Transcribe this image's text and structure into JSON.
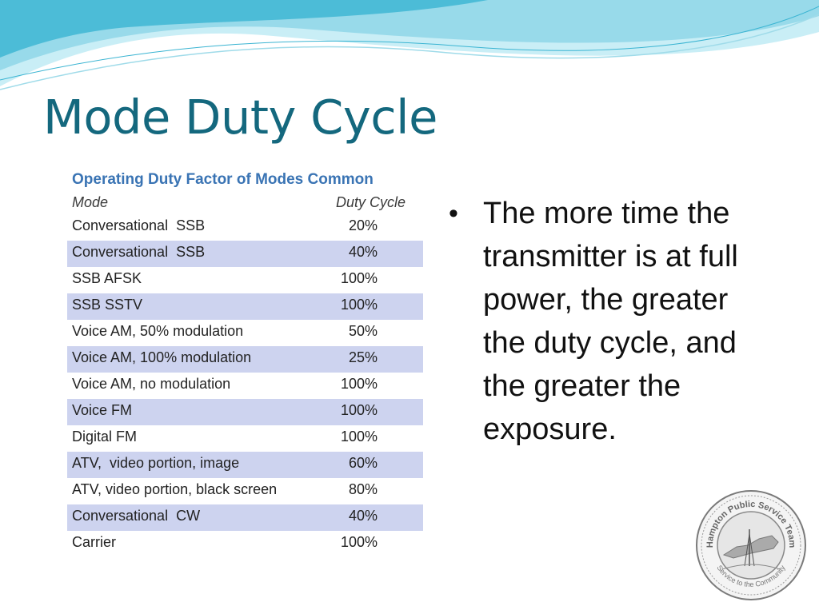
{
  "slide": {
    "title": "Mode Duty Cycle"
  },
  "table": {
    "caption": "Operating Duty Factor of Modes Common",
    "header_mode": "Mode",
    "header_duty": "Duty Cycle",
    "rows": [
      {
        "mode": "Conversational  SSB",
        "duty": "20%",
        "shaded": false
      },
      {
        "mode": "Conversational  SSB",
        "duty": "40%",
        "shaded": true
      },
      {
        "mode": "SSB AFSK",
        "duty": "100%",
        "shaded": false
      },
      {
        "mode": "SSB SSTV",
        "duty": "100%",
        "shaded": true
      },
      {
        "mode": "Voice AM, 50% modulation",
        "duty": "50%",
        "shaded": false
      },
      {
        "mode": "Voice AM, 100% modulation",
        "duty": "25%",
        "shaded": true
      },
      {
        "mode": "Voice AM, no modulation",
        "duty": "100%",
        "shaded": false
      },
      {
        "mode": "Voice FM",
        "duty": "100%",
        "shaded": true
      },
      {
        "mode": "Digital FM",
        "duty": "100%",
        "shaded": false
      },
      {
        "mode": "ATV,  video portion, image",
        "duty": "60%",
        "shaded": true
      },
      {
        "mode": "ATV, video portion, black screen",
        "duty": "80%",
        "shaded": false
      },
      {
        "mode": "Conversational  CW",
        "duty": "40%",
        "shaded": true
      },
      {
        "mode": "Carrier",
        "duty": "100%",
        "shaded": false
      }
    ]
  },
  "bullets": [
    {
      "marker": "•",
      "text": "The more time the transmitter is at full power, the greater the duty cycle, and the greater the exposure."
    }
  ],
  "seal": {
    "text_top": "Hampton Public Service Team",
    "text_bottom": "Service to the Community"
  },
  "colors": {
    "title": "#14687e",
    "caption": "#3a74b4",
    "row_shade": "#cdd3ef",
    "wave_light": "#c9eef6",
    "wave_mid": "#8fd6e8",
    "wave_dark": "#3ab4d2"
  }
}
